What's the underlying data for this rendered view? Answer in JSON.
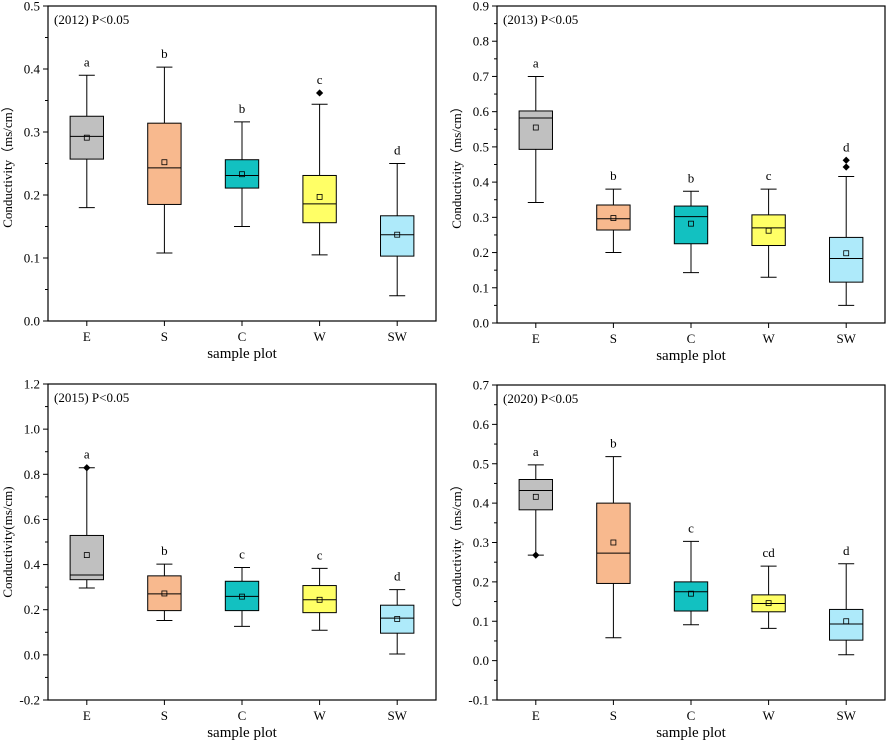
{
  "chart_data": [
    {
      "type": "box",
      "title": "(2012)  P<0.05",
      "xlabel": "sample plot",
      "ylabel": "Conductivity（ms/cm）",
      "ylim": [
        0,
        0.5
      ],
      "yticks": [
        "0.0",
        "0.1",
        "0.2",
        "0.3",
        "0.4",
        "0.5"
      ],
      "categories": [
        "E",
        "S",
        "C",
        "W",
        "SW"
      ],
      "colors": [
        "#c0c0c0",
        "#f8b98e",
        "#12c1c1",
        "#ffff66",
        "#aeeafa"
      ],
      "boxes": [
        {
          "letter": "a",
          "whisker_low": 0.18,
          "q1": 0.257,
          "median": 0.293,
          "q3": 0.325,
          "whisker_high": 0.39,
          "mean": 0.291,
          "outliers": []
        },
        {
          "letter": "b",
          "whisker_low": 0.108,
          "q1": 0.185,
          "median": 0.243,
          "q3": 0.314,
          "whisker_high": 0.403,
          "mean": 0.252,
          "outliers": []
        },
        {
          "letter": "b",
          "whisker_low": 0.15,
          "q1": 0.211,
          "median": 0.231,
          "q3": 0.256,
          "whisker_high": 0.316,
          "mean": 0.233,
          "outliers": []
        },
        {
          "letter": "c",
          "whisker_low": 0.105,
          "q1": 0.156,
          "median": 0.186,
          "q3": 0.231,
          "whisker_high": 0.344,
          "mean": 0.197,
          "outliers": [
            0.362
          ]
        },
        {
          "letter": "d",
          "whisker_low": 0.04,
          "q1": 0.103,
          "median": 0.137,
          "q3": 0.167,
          "whisker_high": 0.25,
          "mean": 0.137,
          "outliers": []
        }
      ]
    },
    {
      "type": "box",
      "title": "(2013)  P<0.05",
      "xlabel": "sample plot",
      "ylabel": "Conductivity（ms/cm）",
      "ylim": [
        0,
        0.9
      ],
      "yticks": [
        "0.0",
        "0.1",
        "0.2",
        "0.3",
        "0.4",
        "0.5",
        "0.6",
        "0.7",
        "0.8",
        "0.9"
      ],
      "categories": [
        "E",
        "S",
        "C",
        "W",
        "SW"
      ],
      "colors": [
        "#c0c0c0",
        "#f8b98e",
        "#12c1c1",
        "#ffff66",
        "#aeeafa"
      ],
      "boxes": [
        {
          "letter": "a",
          "whisker_low": 0.342,
          "q1": 0.493,
          "median": 0.582,
          "q3": 0.602,
          "whisker_high": 0.7,
          "mean": 0.555,
          "outliers": []
        },
        {
          "letter": "b",
          "whisker_low": 0.2,
          "q1": 0.264,
          "median": 0.296,
          "q3": 0.335,
          "whisker_high": 0.38,
          "mean": 0.298,
          "outliers": []
        },
        {
          "letter": "b",
          "whisker_low": 0.143,
          "q1": 0.225,
          "median": 0.302,
          "q3": 0.332,
          "whisker_high": 0.374,
          "mean": 0.282,
          "outliers": []
        },
        {
          "letter": "c",
          "whisker_low": 0.13,
          "q1": 0.22,
          "median": 0.27,
          "q3": 0.307,
          "whisker_high": 0.38,
          "mean": 0.262,
          "outliers": []
        },
        {
          "letter": "d",
          "whisker_low": 0.05,
          "q1": 0.116,
          "median": 0.183,
          "q3": 0.243,
          "whisker_high": 0.416,
          "mean": 0.198,
          "outliers": [
            0.443,
            0.462
          ]
        }
      ]
    },
    {
      "type": "box",
      "title": "(2015)  P<0.05",
      "xlabel": "sample plot",
      "ylabel": "Conductivity(ms/cm)",
      "ylim": [
        -0.2,
        1.2
      ],
      "yticks": [
        "-0.2",
        "0.0",
        "0.2",
        "0.4",
        "0.6",
        "0.8",
        "1.0",
        "1.2"
      ],
      "categories": [
        "E",
        "S",
        "C",
        "W",
        "SW"
      ],
      "colors": [
        "#c0c0c0",
        "#f8b98e",
        "#12c1c1",
        "#ffff66",
        "#aeeafa"
      ],
      "boxes": [
        {
          "letter": "a",
          "whisker_low": 0.296,
          "q1": 0.333,
          "median": 0.354,
          "q3": 0.529,
          "whisker_high": 0.829,
          "mean": 0.442,
          "outliers": [
            0.829
          ]
        },
        {
          "letter": "b",
          "whisker_low": 0.152,
          "q1": 0.196,
          "median": 0.27,
          "q3": 0.35,
          "whisker_high": 0.402,
          "mean": 0.272,
          "outliers": []
        },
        {
          "letter": "c",
          "whisker_low": 0.126,
          "q1": 0.196,
          "median": 0.259,
          "q3": 0.326,
          "whisker_high": 0.387,
          "mean": 0.258,
          "outliers": []
        },
        {
          "letter": "c",
          "whisker_low": 0.109,
          "q1": 0.187,
          "median": 0.244,
          "q3": 0.307,
          "whisker_high": 0.383,
          "mean": 0.244,
          "outliers": []
        },
        {
          "letter": "d",
          "whisker_low": 0.004,
          "q1": 0.096,
          "median": 0.163,
          "q3": 0.22,
          "whisker_high": 0.289,
          "mean": 0.159,
          "outliers": []
        }
      ]
    },
    {
      "type": "box",
      "title": "(2020)    P<0.05",
      "xlabel": "sample plot",
      "ylabel": "Conductivity（ms/cm）",
      "ylim": [
        -0.1,
        0.7
      ],
      "yticks": [
        "-0.1",
        "0.0",
        "0.1",
        "0.2",
        "0.3",
        "0.4",
        "0.5",
        "0.6",
        "0.7"
      ],
      "categories": [
        "E",
        "S",
        "C",
        "W",
        "SW"
      ],
      "colors": [
        "#c0c0c0",
        "#f8b98e",
        "#12c1c1",
        "#ffff66",
        "#aeeafa"
      ],
      "boxes": [
        {
          "letter": "a",
          "whisker_low": 0.268,
          "q1": 0.383,
          "median": 0.432,
          "q3": 0.46,
          "whisker_high": 0.497,
          "mean": 0.416,
          "outliers": [
            0.268
          ]
        },
        {
          "letter": "b",
          "whisker_low": 0.058,
          "q1": 0.196,
          "median": 0.273,
          "q3": 0.4,
          "whisker_high": 0.518,
          "mean": 0.3,
          "outliers": []
        },
        {
          "letter": "c",
          "whisker_low": 0.091,
          "q1": 0.126,
          "median": 0.175,
          "q3": 0.2,
          "whisker_high": 0.303,
          "mean": 0.17,
          "outliers": []
        },
        {
          "letter": "cd",
          "whisker_low": 0.082,
          "q1": 0.124,
          "median": 0.145,
          "q3": 0.167,
          "whisker_high": 0.24,
          "mean": 0.146,
          "outliers": []
        },
        {
          "letter": "d",
          "whisker_low": 0.015,
          "q1": 0.052,
          "median": 0.093,
          "q3": 0.13,
          "whisker_high": 0.246,
          "mean": 0.1,
          "outliers": []
        }
      ]
    }
  ]
}
